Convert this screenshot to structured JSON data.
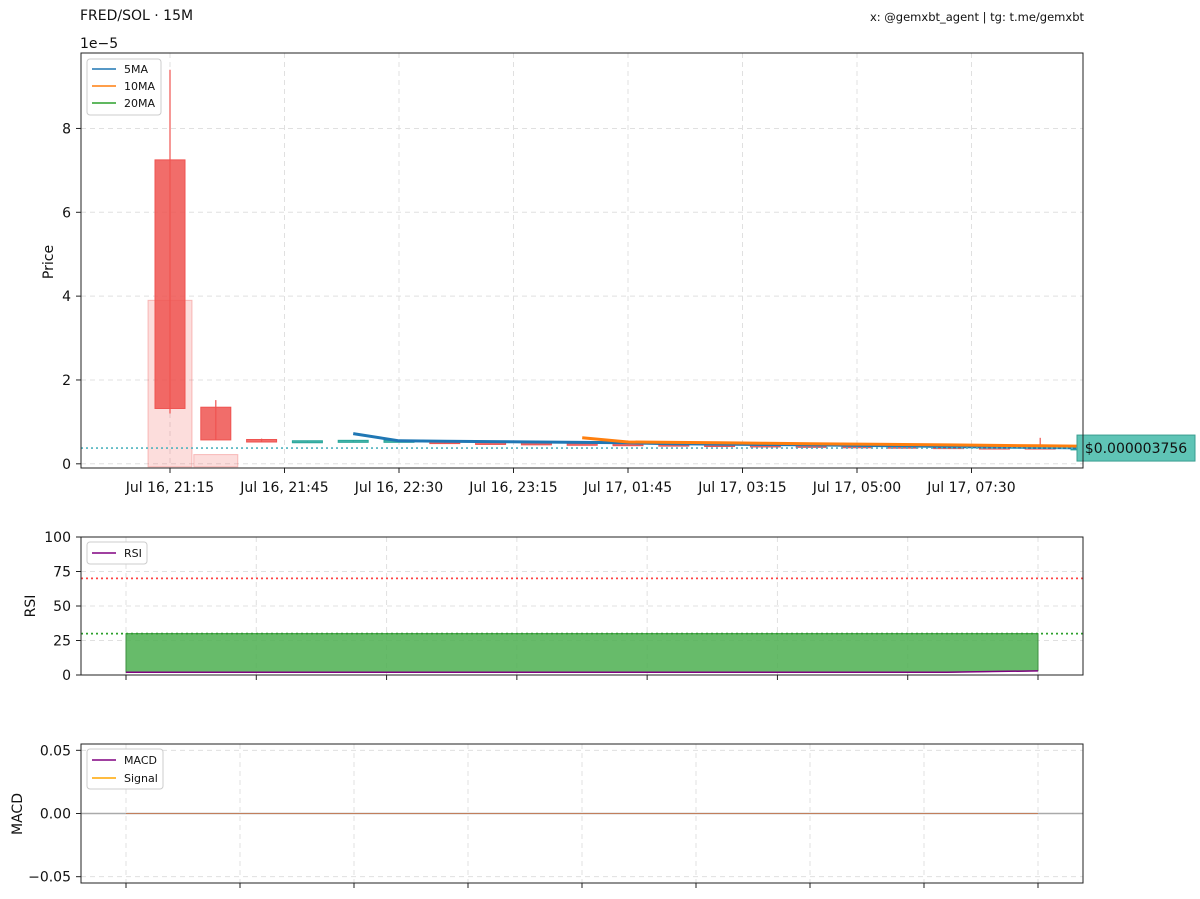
{
  "header": {
    "title": "FRED/SOL · 15M",
    "watermark": "x: @gemxbt_agent | tg: t.me/gemxbt"
  },
  "colors": {
    "up": "#26a69a",
    "down": "#ef5350",
    "ma5": "#1f77b4",
    "ma10": "#ff7f0e",
    "ma20": "#2ca02c",
    "rsi": "#800080",
    "macd": "#800080",
    "signal": "#ffa500",
    "price_tag_bg": "#5fc4b6"
  },
  "chart_data": [
    {
      "type": "candlestick",
      "ylabel": "Price",
      "y_scale_label": "1e−5",
      "ylim": [
        -0.1,
        9.8
      ],
      "y_ticks": [
        0,
        2,
        4,
        6,
        8
      ],
      "x_tick_labels": [
        "Jul 16, 21:15",
        "Jul 16, 21:45",
        "Jul 16, 22:30",
        "Jul 16, 23:15",
        "Jul 17, 01:45",
        "Jul 17, 03:15",
        "Jul 17, 05:00",
        "Jul 17, 07:30"
      ],
      "grid": true,
      "legend_position": "top-left",
      "legend": [
        "5MA",
        "10MA",
        "20MA"
      ],
      "current_price_label": "$0.000003756",
      "current_price": 0.3756,
      "candles": [
        {
          "i": 0,
          "open": 7.25,
          "high": 9.4,
          "low": 1.2,
          "close": 1.32
        },
        {
          "i": 1,
          "open": 1.35,
          "high": 1.52,
          "low": 0.57,
          "close": 0.57
        },
        {
          "i": 2,
          "open": 0.58,
          "high": 0.6,
          "low": 0.52,
          "close": 0.52
        },
        {
          "i": 3,
          "open": 0.54,
          "high": 0.55,
          "low": 0.53,
          "close": 0.55
        },
        {
          "i": 4,
          "open": 0.54,
          "high": 0.56,
          "low": 0.53,
          "close": 0.56
        },
        {
          "i": 5,
          "open": 0.55,
          "high": 0.56,
          "low": 0.54,
          "close": 0.56
        },
        {
          "i": 6,
          "open": 0.53,
          "high": 0.55,
          "low": 0.5,
          "close": 0.51
        },
        {
          "i": 7,
          "open": 0.51,
          "high": 0.52,
          "low": 0.49,
          "close": 0.5
        },
        {
          "i": 8,
          "open": 0.5,
          "high": 0.51,
          "low": 0.48,
          "close": 0.49
        },
        {
          "i": 9,
          "open": 0.49,
          "high": 0.5,
          "low": 0.47,
          "close": 0.48
        },
        {
          "i": 10,
          "open": 0.48,
          "high": 0.49,
          "low": 0.46,
          "close": 0.47
        },
        {
          "i": 11,
          "open": 0.47,
          "high": 0.48,
          "low": 0.45,
          "close": 0.46
        },
        {
          "i": 12,
          "open": 0.46,
          "high": 0.47,
          "low": 0.44,
          "close": 0.45
        },
        {
          "i": 13,
          "open": 0.45,
          "high": 0.46,
          "low": 0.43,
          "close": 0.44
        },
        {
          "i": 14,
          "open": 0.44,
          "high": 0.45,
          "low": 0.42,
          "close": 0.43
        },
        {
          "i": 15,
          "open": 0.43,
          "high": 0.44,
          "low": 0.41,
          "close": 0.42
        },
        {
          "i": 16,
          "open": 0.42,
          "high": 0.43,
          "low": 0.4,
          "close": 0.41
        },
        {
          "i": 17,
          "open": 0.41,
          "high": 0.42,
          "low": 0.39,
          "close": 0.4
        },
        {
          "i": 18,
          "open": 0.4,
          "high": 0.41,
          "low": 0.38,
          "close": 0.39
        },
        {
          "i": 19,
          "open": 0.4,
          "high": 0.62,
          "low": 0.38,
          "close": 0.38
        },
        {
          "i": 20,
          "open": 0.38,
          "high": 0.39,
          "low": 0.37,
          "close": 0.38
        }
      ],
      "volume": [
        3.9,
        0.22
      ],
      "series": [
        {
          "name": "5MA",
          "points": [
            [
              4,
              0.72
            ],
            [
              5,
              0.55
            ],
            [
              6,
              0.54
            ],
            [
              7,
              0.53
            ],
            [
              8,
              0.52
            ],
            [
              9,
              0.51
            ],
            [
              10,
              0.5
            ],
            [
              11,
              0.48
            ],
            [
              12,
              0.47
            ],
            [
              13,
              0.46
            ],
            [
              14,
              0.45
            ],
            [
              15,
              0.44
            ],
            [
              16,
              0.43
            ],
            [
              17,
              0.41
            ],
            [
              18,
              0.4
            ],
            [
              19,
              0.39
            ],
            [
              20,
              0.38
            ]
          ]
        },
        {
          "name": "10MA",
          "points": [
            [
              9,
              0.62
            ],
            [
              10,
              0.52
            ],
            [
              11,
              0.51
            ],
            [
              12,
              0.5
            ],
            [
              13,
              0.49
            ],
            [
              14,
              0.48
            ],
            [
              15,
              0.47
            ],
            [
              16,
              0.46
            ],
            [
              17,
              0.45
            ],
            [
              18,
              0.44
            ],
            [
              19,
              0.43
            ],
            [
              20,
              0.42
            ]
          ]
        },
        {
          "name": "20MA",
          "points": []
        }
      ]
    },
    {
      "type": "line",
      "ylabel": "RSI",
      "ylim": [
        0,
        100
      ],
      "y_ticks": [
        0,
        25,
        50,
        75,
        100
      ],
      "overbought": 70,
      "oversold": 30,
      "grid": true,
      "legend_position": "top-left",
      "legend": [
        "RSI"
      ],
      "series": [
        {
          "name": "RSI",
          "points": [
            [
              0,
              2
            ],
            [
              1,
              2
            ],
            [
              2,
              2
            ],
            [
              3,
              2
            ],
            [
              4,
              2
            ],
            [
              5,
              2
            ],
            [
              6,
              2
            ],
            [
              7,
              2
            ],
            [
              8,
              2
            ],
            [
              9,
              2
            ],
            [
              10,
              2
            ],
            [
              11,
              2
            ],
            [
              12,
              2
            ],
            [
              13,
              2
            ],
            [
              14,
              2
            ],
            [
              15,
              2
            ],
            [
              16,
              2
            ],
            [
              17,
              2
            ],
            [
              18,
              2
            ],
            [
              19,
              2.5
            ],
            [
              20,
              3
            ]
          ]
        }
      ]
    },
    {
      "type": "line",
      "ylabel": "MACD",
      "ylim": [
        -0.055,
        0.055
      ],
      "y_ticks": [
        -0.05,
        0.0,
        0.05
      ],
      "y_tick_labels": [
        "−0.05",
        "0.00",
        "0.05"
      ],
      "grid": true,
      "legend_position": "top-left",
      "legend": [
        "MACD",
        "Signal"
      ],
      "series": [
        {
          "name": "MACD",
          "points": [
            [
              0,
              0
            ],
            [
              20,
              0
            ]
          ]
        },
        {
          "name": "Signal",
          "points": [
            [
              0,
              0
            ],
            [
              20,
              0
            ]
          ]
        }
      ]
    }
  ]
}
